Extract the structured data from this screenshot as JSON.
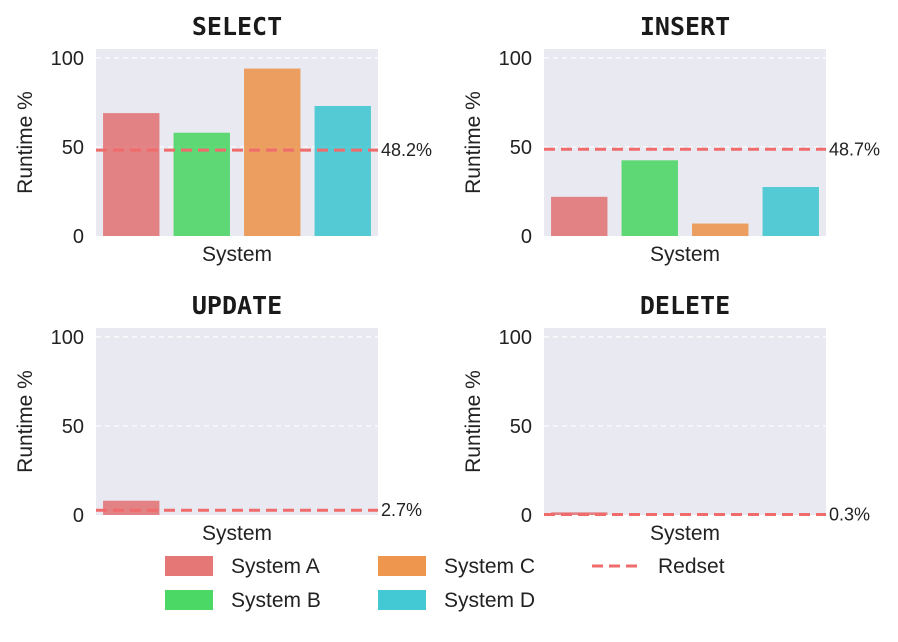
{
  "legend": {
    "items": [
      {
        "label": "System A",
        "kind": "bar"
      },
      {
        "label": "System B",
        "kind": "bar"
      },
      {
        "label": "System C",
        "kind": "bar"
      },
      {
        "label": "System D",
        "kind": "bar"
      },
      {
        "label": "Redset",
        "kind": "line"
      }
    ]
  },
  "colors": {
    "System A": "#e05f5f",
    "System B": "#2dd14a",
    "System C": "#ec842f",
    "System D": "#22bfcb",
    "Redset": "#f06b6b",
    "plot_background": "#e9e9f1"
  },
  "chart_data": [
    {
      "type": "bar",
      "title": "SELECT",
      "xlabel": "System",
      "ylabel": "Runtime %",
      "ylim": [
        0,
        105
      ],
      "yticks": [
        0,
        50,
        100
      ],
      "grid": "horizontal dashed",
      "categories": [
        "System A",
        "System B",
        "System C",
        "System D"
      ],
      "values": [
        69,
        58,
        94,
        73
      ],
      "reference_line": {
        "name": "Redset",
        "value": 48.2,
        "label": "48.2%"
      }
    },
    {
      "type": "bar",
      "title": "INSERT",
      "xlabel": "System",
      "ylabel": "Runtime %",
      "ylim": [
        0,
        105
      ],
      "yticks": [
        0,
        50,
        100
      ],
      "grid": "horizontal dashed",
      "categories": [
        "System A",
        "System B",
        "System C",
        "System D"
      ],
      "values": [
        22,
        42.5,
        7,
        27.5
      ],
      "reference_line": {
        "name": "Redset",
        "value": 48.7,
        "label": "48.7%"
      }
    },
    {
      "type": "bar",
      "title": "UPDATE",
      "xlabel": "System",
      "ylabel": "Runtime %",
      "ylim": [
        0,
        105
      ],
      "yticks": [
        0,
        50,
        100
      ],
      "grid": "horizontal dashed",
      "categories": [
        "System A",
        "System B",
        "System C",
        "System D"
      ],
      "values": [
        8,
        0,
        0,
        0
      ],
      "reference_line": {
        "name": "Redset",
        "value": 2.7,
        "label": "2.7%"
      }
    },
    {
      "type": "bar",
      "title": "DELETE",
      "xlabel": "System",
      "ylabel": "Runtime %",
      "ylim": [
        0,
        105
      ],
      "yticks": [
        0,
        50,
        100
      ],
      "grid": "horizontal dashed",
      "categories": [
        "System A",
        "System B",
        "System C",
        "System D"
      ],
      "values": [
        1.5,
        0,
        0,
        0
      ],
      "reference_line": {
        "name": "Redset",
        "value": 0.3,
        "label": "0.3%"
      }
    }
  ]
}
